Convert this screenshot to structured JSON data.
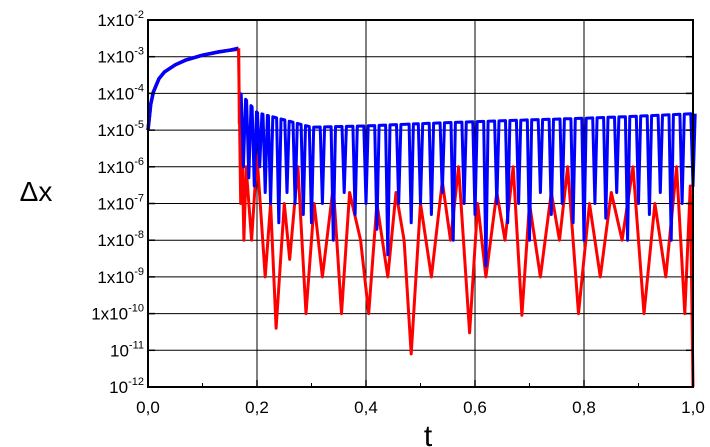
{
  "chart_data": {
    "type": "line",
    "title": "",
    "xlabel": "t",
    "ylabel": "Δx",
    "xlim": [
      0.0,
      1.0
    ],
    "ylim_log10": [
      -12,
      -2
    ],
    "y_scale": "log",
    "grid": true,
    "legend": "none",
    "x_ticks": [
      {
        "value": 0.0,
        "label": "0,0"
      },
      {
        "value": 0.2,
        "label": "0,2"
      },
      {
        "value": 0.4,
        "label": "0,4"
      },
      {
        "value": 0.6,
        "label": "0,6"
      },
      {
        "value": 0.8,
        "label": "0,8"
      },
      {
        "value": 1.0,
        "label": "1,0"
      }
    ],
    "y_ticks": [
      {
        "exp": -2,
        "base": "1x10",
        "sup": "-2"
      },
      {
        "exp": -3,
        "base": "1x10",
        "sup": "-3"
      },
      {
        "exp": -4,
        "base": "1x10",
        "sup": "-4"
      },
      {
        "exp": -5,
        "base": "1x10",
        "sup": "-5"
      },
      {
        "exp": -6,
        "base": "1x10",
        "sup": "-6"
      },
      {
        "exp": -7,
        "base": "1x10",
        "sup": "-7"
      },
      {
        "exp": -8,
        "base": "1x10",
        "sup": "-8"
      },
      {
        "exp": -9,
        "base": "1x10",
        "sup": "-9"
      },
      {
        "exp": -10,
        "base": "1x10",
        "sup": "-10"
      },
      {
        "exp": -11,
        "base": "10",
        "sup": "-11"
      },
      {
        "exp": -12,
        "base": "10",
        "sup": "-12"
      }
    ],
    "series": [
      {
        "color": "#ff0000",
        "smooth": {
          "x": [
            0.0,
            0.005,
            0.01,
            0.02,
            0.03,
            0.05,
            0.07,
            0.1,
            0.13,
            0.15,
            0.166
          ],
          "y": [
            1e-05,
            5e-05,
            0.00011,
            0.00025,
            0.00038,
            0.0006,
            0.00082,
            0.0011,
            0.00135,
            0.0015,
            0.0016
          ]
        },
        "x": [
          0.166,
          0.168,
          0.17,
          0.172,
          0.176,
          0.18,
          0.19,
          0.2,
          0.215,
          0.225,
          0.235,
          0.25,
          0.26,
          0.275,
          0.29,
          0.305,
          0.32,
          0.34,
          0.355,
          0.37,
          0.39,
          0.405,
          0.42,
          0.44,
          0.455,
          0.47,
          0.483,
          0.5,
          0.52,
          0.54,
          0.555,
          0.57,
          0.59,
          0.605,
          0.62,
          0.64,
          0.655,
          0.67,
          0.686,
          0.7,
          0.72,
          0.74,
          0.755,
          0.77,
          0.79,
          0.81,
          0.83,
          0.85,
          0.87,
          0.89,
          0.91,
          0.93,
          0.95,
          0.97,
          0.985,
          0.995,
          1.0
        ],
        "y": [
          0.0016,
          1.5e-05,
          1e-07,
          1e-05,
          1e-08,
          1e-06,
          1e-08,
          2e-06,
          1e-09,
          1e-07,
          4e-11,
          1e-07,
          3e-09,
          1e-06,
          1e-10,
          1e-07,
          1e-09,
          3e-07,
          1e-10,
          2e-07,
          1e-08,
          1e-10,
          1e-07,
          1e-09,
          2e-07,
          1e-08,
          8e-12,
          1e-07,
          1e-09,
          4e-07,
          1e-08,
          1e-06,
          3e-11,
          1e-07,
          1e-09,
          2e-07,
          1e-08,
          1e-06,
          9e-11,
          1e-07,
          1e-09,
          2e-07,
          1e-08,
          1e-06,
          1e-10,
          1e-07,
          1e-09,
          2e-07,
          1e-08,
          1e-06,
          1e-10,
          1e-07,
          1e-09,
          1e-06,
          1e-10,
          3e-07,
          1e-12
        ]
      },
      {
        "color": "#0000ff",
        "smooth": {
          "x": [
            0.0,
            0.005,
            0.01,
            0.02,
            0.03,
            0.05,
            0.07,
            0.1,
            0.13,
            0.15,
            0.166
          ],
          "y": [
            1e-05,
            5e-05,
            0.00011,
            0.00025,
            0.00038,
            0.0006,
            0.00082,
            0.0011,
            0.00135,
            0.0015,
            0.0017
          ]
        },
        "envelope_top": {
          "x": [
            0.17,
            0.2,
            0.3,
            0.4,
            0.5,
            0.6,
            0.7,
            0.8,
            0.9,
            1.0
          ],
          "y": [
            0.0001,
            3e-05,
            1.2e-05,
            1.3e-05,
            1.5e-05,
            1.7e-05,
            1.9e-05,
            2.1e-05,
            2.4e-05,
            2.8e-05
          ]
        },
        "x": [
          0.175,
          0.185,
          0.195,
          0.205,
          0.215,
          0.225,
          0.24,
          0.255,
          0.27,
          0.285,
          0.3,
          0.32,
          0.34,
          0.36,
          0.38,
          0.4,
          0.42,
          0.44,
          0.46,
          0.483,
          0.5,
          0.52,
          0.54,
          0.56,
          0.58,
          0.6,
          0.62,
          0.64,
          0.66,
          0.68,
          0.7,
          0.72,
          0.74,
          0.76,
          0.78,
          0.8,
          0.82,
          0.84,
          0.86,
          0.88,
          0.9,
          0.92,
          0.94,
          0.96,
          0.98,
          1.0
        ],
        "y": [
          1e-06,
          5e-07,
          3e-07,
          1e-06,
          2e-07,
          1e-07,
          3e-08,
          2e-07,
          1e-07,
          5e-08,
          3e-08,
          1e-07,
          1e-08,
          2e-07,
          5e-08,
          1e-07,
          2e-08,
          4e-09,
          1e-07,
          3e-08,
          1e-07,
          5e-08,
          2e-07,
          1e-08,
          1e-07,
          5e-08,
          2e-09,
          1e-07,
          3e-08,
          1e-07,
          1e-08,
          2e-07,
          5e-08,
          1e-07,
          3e-08,
          1e-08,
          1e-07,
          4e-08,
          2e-07,
          1e-08,
          1e-07,
          5e-08,
          2e-07,
          1e-08,
          1e-07,
          3e-07
        ]
      }
    ]
  }
}
